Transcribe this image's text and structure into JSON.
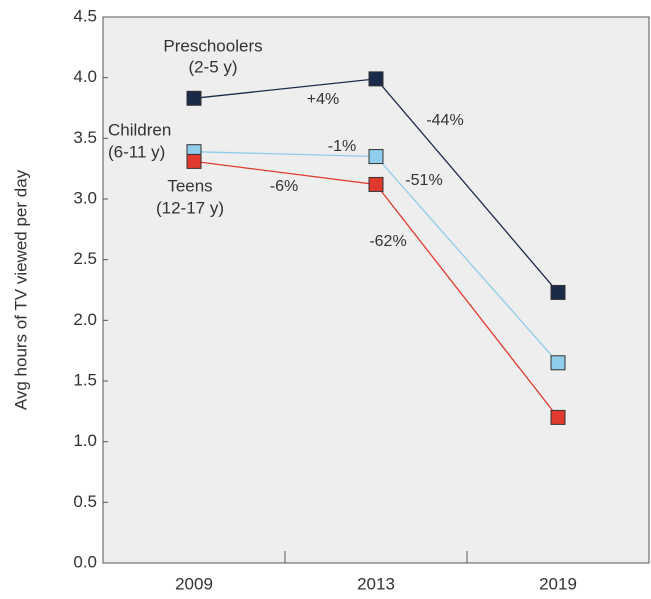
{
  "chart_data": {
    "type": "line",
    "y_label": "Avg hours of TV viewed per day",
    "categories": [
      "2009",
      "2013",
      "2019"
    ],
    "series": [
      {
        "name": "Preschoolers",
        "sublabel": "(2-5 y)",
        "color": "#1c2a4a",
        "values": [
          3.83,
          3.99,
          2.23
        ]
      },
      {
        "name": "Children",
        "sublabel": "(6-11 y)",
        "color": "#8fcdea",
        "values": [
          3.39,
          3.35,
          1.65
        ]
      },
      {
        "name": "Teens",
        "sublabel": "(12-17 y)",
        "color": "#e03a2e",
        "values": [
          3.31,
          3.12,
          1.2
        ]
      }
    ],
    "annotations": [
      "+4%",
      "-44%",
      "-1%",
      "-51%",
      "-6%",
      "-62%"
    ],
    "ylim": [
      0,
      4.5
    ],
    "yticks": [
      {
        "value": 0,
        "label": "0.0"
      },
      0.5,
      {
        "value": 1,
        "label": "1.0"
      },
      1.5,
      {
        "value": 2,
        "label": "2.0"
      },
      2.5,
      {
        "value": 3,
        "label": "3.0"
      },
      3.5,
      {
        "value": 4,
        "label": "4.0"
      },
      4.5
    ]
  }
}
